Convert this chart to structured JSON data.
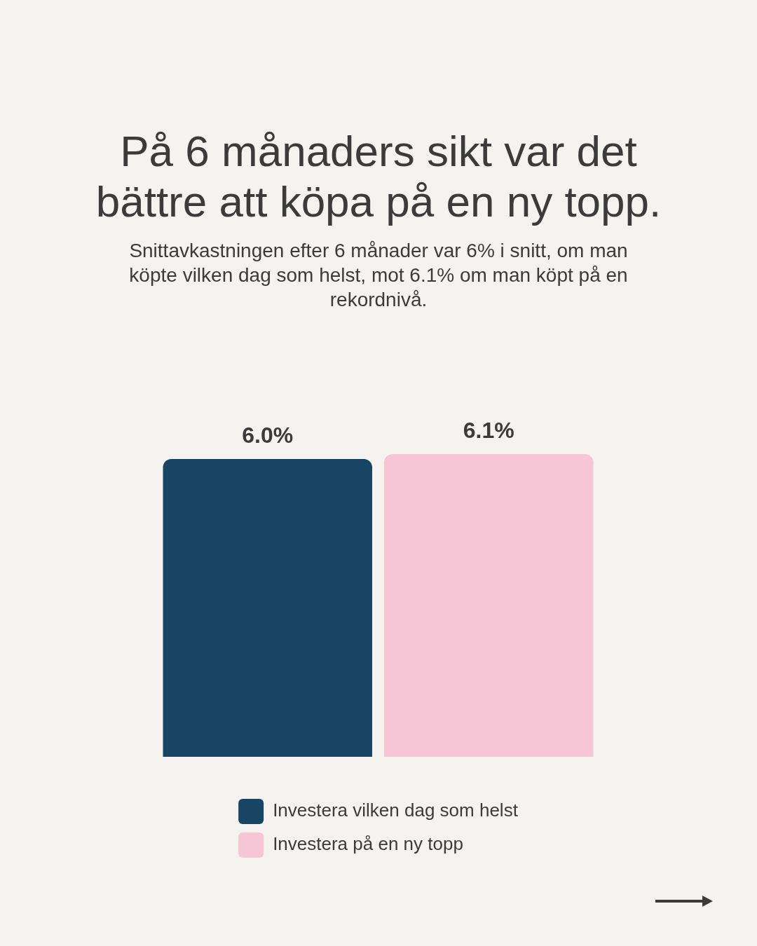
{
  "chart_data": {
    "type": "bar",
    "title": "På 6 månaders sikt var det bättre att köpa på en ny topp.",
    "subtitle": "Snittavkastningen efter 6 månader var 6% i snitt, om man köpte vilken dag som helst, mot 6.1% om man köpt på en rekordnivå.",
    "categories": [
      null
    ],
    "series": [
      {
        "name": "Investera vilken dag som helst",
        "color": "#174563",
        "values": [
          6.0
        ],
        "value_labels": [
          "6.0%"
        ]
      },
      {
        "name": "Investera på en ny topp",
        "color": "#f7c6d6",
        "values": [
          6.1
        ],
        "value_labels": [
          "6.1%"
        ]
      }
    ],
    "legend": "bottom",
    "tick_labels": false
  }
}
